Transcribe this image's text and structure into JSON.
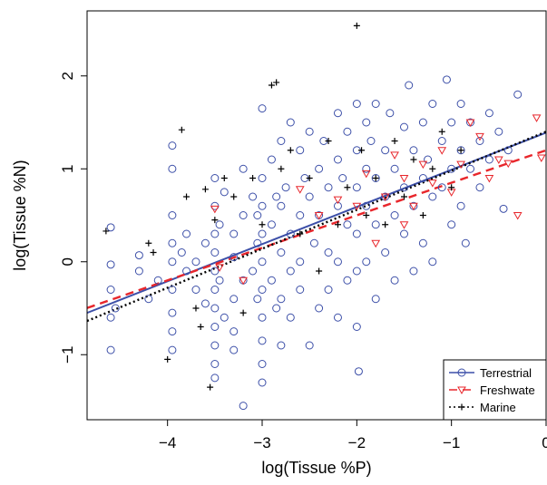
{
  "chart_data": {
    "type": "scatter",
    "xlabel": "log(Tissue %P)",
    "ylabel": "log(Tissue %N)",
    "xlim": [
      -4.85,
      0.0
    ],
    "ylim": [
      -1.7,
      2.7
    ],
    "xticks": [
      -4,
      -3,
      -2,
      -1,
      0
    ],
    "yticks": [
      -1,
      0,
      1,
      2
    ],
    "xtick_labels": [
      "−4",
      "−3",
      "−2",
      "−1",
      "0"
    ],
    "ytick_labels": [
      "−1",
      "0",
      "1",
      "2"
    ],
    "legend_position": "bottom-right",
    "series": [
      {
        "name": "Terrestrial",
        "color": "#3c4fa8",
        "marker": "circle",
        "line_style": "solid",
        "fit": {
          "intercept": 1.39,
          "slope": 0.4
        },
        "points": [
          [
            -4.6,
            0.37
          ],
          [
            -4.6,
            -0.03
          ],
          [
            -4.6,
            -0.6
          ],
          [
            -4.6,
            -0.95
          ],
          [
            -4.6,
            -0.3
          ],
          [
            -4.55,
            -0.5
          ],
          [
            -4.3,
            0.07
          ],
          [
            -4.3,
            -0.1
          ],
          [
            -4.2,
            -0.4
          ],
          [
            -4.1,
            -0.2
          ],
          [
            -3.95,
            1.25
          ],
          [
            -3.95,
            1.0
          ],
          [
            -3.95,
            0.5
          ],
          [
            -3.95,
            0.2
          ],
          [
            -3.95,
            0.0
          ],
          [
            -3.95,
            -0.3
          ],
          [
            -3.95,
            -0.55
          ],
          [
            -3.95,
            -0.75
          ],
          [
            -3.95,
            -0.95
          ],
          [
            -3.85,
            0.1
          ],
          [
            -3.8,
            -0.1
          ],
          [
            -3.8,
            0.3
          ],
          [
            -3.7,
            -0.3
          ],
          [
            -3.7,
            0.0
          ],
          [
            -3.6,
            -0.45
          ],
          [
            -3.6,
            0.2
          ],
          [
            -3.5,
            0.9
          ],
          [
            -3.5,
            0.6
          ],
          [
            -3.5,
            0.3
          ],
          [
            -3.5,
            0.1
          ],
          [
            -3.5,
            -0.1
          ],
          [
            -3.5,
            -0.3
          ],
          [
            -3.5,
            -0.5
          ],
          [
            -3.5,
            -0.7
          ],
          [
            -3.5,
            -0.9
          ],
          [
            -3.5,
            -1.1
          ],
          [
            -3.5,
            -1.25
          ],
          [
            -3.45,
            0.4
          ],
          [
            -3.45,
            -0.2
          ],
          [
            -3.4,
            0.75
          ],
          [
            -3.4,
            -0.6
          ],
          [
            -3.3,
            -0.75
          ],
          [
            -3.3,
            -0.95
          ],
          [
            -3.3,
            -0.4
          ],
          [
            -3.3,
            0.3
          ],
          [
            -3.3,
            0.05
          ],
          [
            -3.2,
            1.0
          ],
          [
            -3.2,
            -1.55
          ],
          [
            -3.2,
            0.5
          ],
          [
            -3.2,
            -0.2
          ],
          [
            -3.1,
            0.7
          ],
          [
            -3.1,
            -0.1
          ],
          [
            -3.05,
            0.5
          ],
          [
            -3.05,
            0.2
          ],
          [
            -3.05,
            -0.4
          ],
          [
            -3.0,
            1.65
          ],
          [
            -3.0,
            0.9
          ],
          [
            -3.0,
            0.6
          ],
          [
            -3.0,
            0.3
          ],
          [
            -3.0,
            0.0
          ],
          [
            -3.0,
            -0.3
          ],
          [
            -3.0,
            -0.6
          ],
          [
            -3.0,
            -0.85
          ],
          [
            -3.0,
            -1.1
          ],
          [
            -3.0,
            -1.3
          ],
          [
            -2.9,
            1.1
          ],
          [
            -2.9,
            0.4
          ],
          [
            -2.9,
            -0.2
          ],
          [
            -2.85,
            0.7
          ],
          [
            -2.85,
            -0.5
          ],
          [
            -2.8,
            1.3
          ],
          [
            -2.8,
            0.6
          ],
          [
            -2.8,
            0.1
          ],
          [
            -2.8,
            -0.4
          ],
          [
            -2.8,
            -0.9
          ],
          [
            -2.75,
            0.8
          ],
          [
            -2.7,
            1.5
          ],
          [
            -2.7,
            0.3
          ],
          [
            -2.7,
            -0.1
          ],
          [
            -2.7,
            -0.6
          ],
          [
            -2.6,
            1.2
          ],
          [
            -2.6,
            0.5
          ],
          [
            -2.6,
            0.0
          ],
          [
            -2.6,
            -0.3
          ],
          [
            -2.55,
            0.9
          ],
          [
            -2.5,
            1.4
          ],
          [
            -2.5,
            0.7
          ],
          [
            -2.5,
            -0.9
          ],
          [
            -2.45,
            0.2
          ],
          [
            -2.4,
            1.0
          ],
          [
            -2.4,
            0.5
          ],
          [
            -2.4,
            -0.5
          ],
          [
            -2.35,
            1.3
          ],
          [
            -2.3,
            0.8
          ],
          [
            -2.3,
            0.1
          ],
          [
            -2.3,
            -0.3
          ],
          [
            -2.2,
            1.6
          ],
          [
            -2.2,
            1.1
          ],
          [
            -2.2,
            0.6
          ],
          [
            -2.2,
            0.0
          ],
          [
            -2.2,
            -0.6
          ],
          [
            -2.15,
            0.9
          ],
          [
            -2.1,
            1.4
          ],
          [
            -2.1,
            0.4
          ],
          [
            -2.1,
            -0.2
          ],
          [
            -2.0,
            1.7
          ],
          [
            -2.0,
            1.2
          ],
          [
            -2.0,
            0.8
          ],
          [
            -2.0,
            0.3
          ],
          [
            -2.0,
            -0.1
          ],
          [
            -2.0,
            -0.7
          ],
          [
            -1.98,
            -1.18
          ],
          [
            -1.9,
            1.5
          ],
          [
            -1.9,
            1.0
          ],
          [
            -1.9,
            0.6
          ],
          [
            -1.9,
            0.0
          ],
          [
            -1.85,
            1.3
          ],
          [
            -1.8,
            1.7
          ],
          [
            -1.8,
            0.9
          ],
          [
            -1.8,
            0.4
          ],
          [
            -1.8,
            -0.4
          ],
          [
            -1.7,
            1.2
          ],
          [
            -1.7,
            0.7
          ],
          [
            -1.7,
            0.1
          ],
          [
            -1.65,
            1.6
          ],
          [
            -1.6,
            1.0
          ],
          [
            -1.6,
            0.5
          ],
          [
            -1.6,
            -0.2
          ],
          [
            -1.5,
            1.45
          ],
          [
            -1.5,
            0.8
          ],
          [
            -1.5,
            0.3
          ],
          [
            -1.45,
            1.9
          ],
          [
            -1.4,
            1.2
          ],
          [
            -1.4,
            0.6
          ],
          [
            -1.4,
            -0.1
          ],
          [
            -1.3,
            1.5
          ],
          [
            -1.3,
            0.9
          ],
          [
            -1.3,
            0.2
          ],
          [
            -1.25,
            1.1
          ],
          [
            -1.2,
            1.7
          ],
          [
            -1.2,
            0.7
          ],
          [
            -1.2,
            0.0
          ],
          [
            -1.1,
            1.3
          ],
          [
            -1.1,
            0.8
          ],
          [
            -1.05,
            1.96
          ],
          [
            -1.0,
            1.5
          ],
          [
            -1.0,
            1.0
          ],
          [
            -1.0,
            0.4
          ],
          [
            -0.9,
            1.7
          ],
          [
            -0.9,
            1.2
          ],
          [
            -0.9,
            0.6
          ],
          [
            -0.85,
            0.2
          ],
          [
            -0.8,
            1.5
          ],
          [
            -0.8,
            1.0
          ],
          [
            -0.7,
            1.3
          ],
          [
            -0.7,
            0.8
          ],
          [
            -0.6,
            1.6
          ],
          [
            -0.6,
            1.1
          ],
          [
            -0.5,
            1.4
          ],
          [
            -0.45,
            0.57
          ],
          [
            -0.4,
            1.2
          ],
          [
            -0.3,
            1.8
          ]
        ]
      },
      {
        "name": "Freshwate",
        "color": "#e8262b",
        "marker": "triangle-down",
        "line_style": "dashed",
        "fit": {
          "intercept": 1.2,
          "slope": 0.35
        },
        "points": [
          [
            -3.5,
            0.57
          ],
          [
            -3.45,
            -0.06
          ],
          [
            -3.2,
            -0.2
          ],
          [
            -2.6,
            0.78
          ],
          [
            -2.4,
            0.5
          ],
          [
            -2.2,
            0.67
          ],
          [
            -2.0,
            0.6
          ],
          [
            -1.9,
            0.95
          ],
          [
            -1.8,
            0.2
          ],
          [
            -1.7,
            0.7
          ],
          [
            -1.6,
            1.15
          ],
          [
            -1.5,
            0.9
          ],
          [
            -1.5,
            0.4
          ],
          [
            -1.4,
            0.6
          ],
          [
            -1.3,
            1.05
          ],
          [
            -1.2,
            0.85
          ],
          [
            -1.1,
            1.2
          ],
          [
            -1.0,
            0.75
          ],
          [
            -0.9,
            1.05
          ],
          [
            -0.8,
            1.5
          ],
          [
            -0.7,
            1.35
          ],
          [
            -0.6,
            0.9
          ],
          [
            -0.5,
            1.1
          ],
          [
            -0.4,
            1.06
          ],
          [
            -0.3,
            0.5
          ],
          [
            -0.1,
            1.55
          ],
          [
            -0.05,
            1.12
          ]
        ]
      },
      {
        "name": "Marine",
        "color": "#000000",
        "marker": "plus",
        "line_style": "dotted",
        "fit": {
          "intercept": 1.4,
          "slope": 0.42
        },
        "points": [
          [
            -4.65,
            0.33
          ],
          [
            -4.2,
            0.2
          ],
          [
            -4.15,
            0.1
          ],
          [
            -4.0,
            -1.05
          ],
          [
            -3.85,
            1.42
          ],
          [
            -3.8,
            0.7
          ],
          [
            -3.7,
            -0.5
          ],
          [
            -3.65,
            -0.7
          ],
          [
            -3.6,
            0.78
          ],
          [
            -3.55,
            -1.35
          ],
          [
            -3.5,
            0.45
          ],
          [
            -3.4,
            0.9
          ],
          [
            -3.3,
            0.7
          ],
          [
            -3.2,
            -0.55
          ],
          [
            -3.1,
            0.9
          ],
          [
            -3.0,
            0.4
          ],
          [
            -2.9,
            1.9
          ],
          [
            -2.85,
            1.93
          ],
          [
            -2.8,
            1.0
          ],
          [
            -2.7,
            1.2
          ],
          [
            -2.6,
            0.3
          ],
          [
            -2.5,
            0.9
          ],
          [
            -2.4,
            -0.1
          ],
          [
            -2.3,
            1.3
          ],
          [
            -2.2,
            0.4
          ],
          [
            -2.1,
            0.8
          ],
          [
            -2.0,
            2.54
          ],
          [
            -1.95,
            1.2
          ],
          [
            -1.9,
            0.5
          ],
          [
            -1.8,
            0.9
          ],
          [
            -1.7,
            0.4
          ],
          [
            -1.6,
            1.3
          ],
          [
            -1.5,
            0.7
          ],
          [
            -1.4,
            1.1
          ],
          [
            -1.3,
            0.5
          ],
          [
            -1.2,
            1.0
          ],
          [
            -1.1,
            1.4
          ],
          [
            -1.0,
            0.8
          ],
          [
            -0.9,
            1.2
          ]
        ]
      }
    ]
  }
}
